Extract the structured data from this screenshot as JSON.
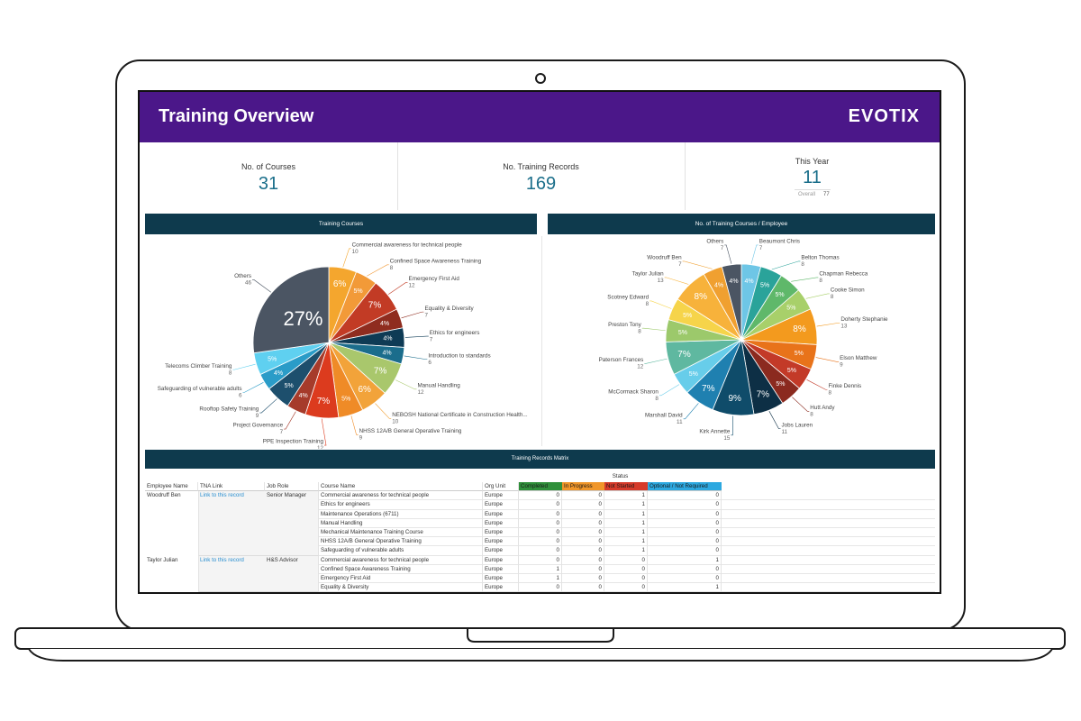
{
  "header": {
    "title": "Training Overview",
    "logo": "EVOTIX"
  },
  "kpis": [
    {
      "label": "No. of Courses",
      "value": 31
    },
    {
      "label": "No. Training Records",
      "value": 169
    },
    {
      "label": "This Year",
      "value": 11,
      "sub_label": "Overall",
      "sub_value": 77
    }
  ],
  "chart_data": [
    {
      "type": "pie",
      "title": "Training Courses",
      "categories": [
        "Commercial awareness for technical people",
        "Confined Space Awareness Training",
        "Emergency First Aid",
        "Equality & Diversity",
        "Ethics for engineers",
        "Introduction to standards",
        "Manual Handling",
        "NEBOSH National Certificate in Construction Health...",
        "NHSS 12A/B General Operative Training",
        "PPE Inspection Training",
        "Project Governance",
        "Rooftop Safety Training",
        "Safeguarding of vulnerable adults",
        "Telecoms Climber Training",
        "Others"
      ],
      "values": [
        10,
        8,
        12,
        7,
        7,
        6,
        12,
        10,
        9,
        12,
        7,
        9,
        6,
        8,
        46
      ],
      "percent_labels": [
        "6%",
        "5%",
        "7%",
        "4%",
        "4%",
        "4%",
        "7%",
        "6%",
        "5%",
        "7%",
        "4%",
        "5%",
        "4%",
        "5%",
        "27%"
      ],
      "colors": [
        "#f4a62e",
        "#f29a38",
        "#c23b25",
        "#8f2c1f",
        "#0e3b55",
        "#1b6d8c",
        "#a9c76c",
        "#f2a33a",
        "#ef8b27",
        "#dc3b1e",
        "#a63b2b",
        "#1d4f6d",
        "#2a9cc8",
        "#5fd0f0",
        "#4b5563"
      ]
    },
    {
      "type": "pie",
      "title": "No. of Training Courses / Employee",
      "categories": [
        "Beaumont Chris",
        "Belton Thomas",
        "Chapman Rebecca",
        "Cooke Simon",
        "Doherty Stephanie",
        "Elson Matthew",
        "Finke Dennis",
        "Hutt Andy",
        "Jobs Lauren",
        "Kirk Annette",
        "Marshall David",
        "McCormack Sharon",
        "Paterson Frances",
        "Preston Tony",
        "Scotney Edward",
        "Taylor Julian",
        "Woodruff Ben",
        "Others"
      ],
      "values": [
        7,
        8,
        8,
        8,
        13,
        9,
        8,
        8,
        11,
        15,
        11,
        8,
        12,
        8,
        8,
        13,
        7,
        7
      ],
      "percent_labels": [
        "4%",
        "5%",
        "5%",
        "5%",
        "8%",
        "5%",
        "5%",
        "5%",
        "7%",
        "9%",
        "7%",
        "5%",
        "7%",
        "5%",
        "5%",
        "8%",
        "4%",
        "4%"
      ],
      "colors": [
        "#6ec6e6",
        "#2aa39a",
        "#5fb86a",
        "#a8d06a",
        "#f39a1e",
        "#e8731a",
        "#c33a28",
        "#8b2a1f",
        "#0d2f45",
        "#0f4c6a",
        "#1f80b0",
        "#67cdea",
        "#5fb8a0",
        "#9cc96b",
        "#f6d44a",
        "#f7b23b",
        "#f0a030",
        "#4b5563"
      ]
    }
  ],
  "table": {
    "title": "Training Records Matrix",
    "status_header": "Status",
    "columns": [
      "Employee Name",
      "TNA Link",
      "Job Role",
      "Course Name",
      "Org Unit",
      "Completed",
      "In Progress",
      "Not Started",
      "Optional / Not Required"
    ],
    "status_colors": [
      "#2f8f3a",
      "#f0962a",
      "#d63a2a",
      "#2ca8e0"
    ],
    "groups": [
      {
        "employee": "Woodruff Ben",
        "tna_link": "Link to this record",
        "job_role": "Senior Manager",
        "rows": [
          {
            "course": "Commercial awareness for technical people",
            "org_unit": "Europe",
            "status": [
              0,
              0,
              1,
              0
            ]
          },
          {
            "course": "Ethics for engineers",
            "org_unit": "Europe",
            "status": [
              0,
              0,
              1,
              0
            ]
          },
          {
            "course": "Maintenance Operations (6711)",
            "org_unit": "Europe",
            "status": [
              0,
              0,
              1,
              0
            ]
          },
          {
            "course": "Manual Handling",
            "org_unit": "Europe",
            "status": [
              0,
              0,
              1,
              0
            ]
          },
          {
            "course": "Mechanical Maintenance Training Course",
            "org_unit": "Europe",
            "status": [
              0,
              0,
              1,
              0
            ]
          },
          {
            "course": "NHSS 12A/B General Operative Training",
            "org_unit": "Europe",
            "status": [
              0,
              0,
              1,
              0
            ]
          },
          {
            "course": "Safeguarding of vulnerable adults",
            "org_unit": "Europe",
            "status": [
              0,
              0,
              1,
              0
            ]
          }
        ]
      },
      {
        "employee": "Taylor Julian",
        "tna_link": "Link to this record",
        "job_role": "H&S Advisor",
        "rows": [
          {
            "course": "Commercial awareness for technical people",
            "org_unit": "Europe",
            "status": [
              0,
              0,
              0,
              1
            ]
          },
          {
            "course": "Confined Space Awareness Training",
            "org_unit": "Europe",
            "status": [
              1,
              0,
              0,
              0
            ]
          },
          {
            "course": "Emergency First Aid",
            "org_unit": "Europe",
            "status": [
              1,
              0,
              0,
              0
            ]
          },
          {
            "course": "Equality & Diversity",
            "org_unit": "Europe",
            "status": [
              0,
              0,
              0,
              1
            ]
          }
        ]
      }
    ]
  }
}
